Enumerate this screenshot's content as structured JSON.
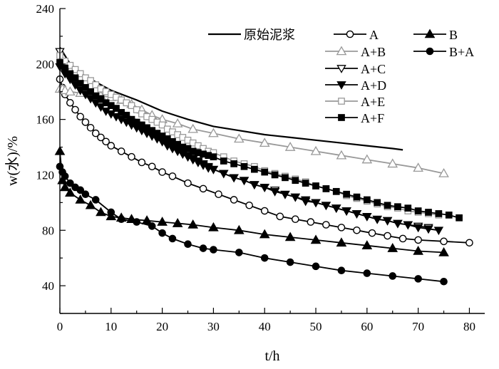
{
  "chart_data": {
    "type": "line",
    "xlabel": "t/h",
    "ylabel": "w(水)/%",
    "xlim": [
      0,
      83
    ],
    "ylim": [
      20,
      240
    ],
    "xticks": [
      0,
      10,
      20,
      30,
      40,
      50,
      60,
      70,
      80
    ],
    "yticks": [
      40,
      80,
      120,
      160,
      200,
      240
    ],
    "legend_position": "top-right",
    "series": [
      {
        "name": "原始泥浆",
        "marker": "none",
        "color": "#000000",
        "x": [
          0,
          2,
          5,
          10,
          15,
          20,
          25,
          30,
          35,
          40,
          45,
          50,
          55,
          60,
          65,
          67
        ],
        "y": [
          212,
          200,
          191,
          181,
          174,
          166,
          160,
          155,
          152,
          149,
          147,
          145,
          143,
          141,
          139,
          138
        ]
      },
      {
        "name": "A",
        "marker": "circle-open",
        "color": "#000000",
        "x": [
          0,
          0.5,
          1,
          2,
          3,
          4,
          5,
          6,
          7,
          8,
          9,
          10,
          12,
          14,
          16,
          18,
          20,
          22,
          25,
          28,
          31,
          34,
          37,
          40,
          43,
          46,
          49,
          52,
          55,
          58,
          61,
          64,
          67,
          70,
          75,
          80
        ],
        "y": [
          189,
          183,
          178,
          172,
          167,
          162,
          158,
          154,
          150,
          147,
          144,
          141,
          137,
          133,
          129,
          126,
          122,
          119,
          114,
          110,
          106,
          102,
          98,
          94,
          90,
          88,
          86,
          84,
          82,
          80,
          78,
          76,
          74,
          73,
          72,
          71
        ]
      },
      {
        "name": "B",
        "marker": "triangle-up-filled",
        "color": "#000000",
        "x": [
          0,
          0.5,
          1,
          2,
          4,
          6,
          8,
          10,
          12,
          14,
          17,
          20,
          23,
          26,
          30,
          35,
          40,
          45,
          50,
          55,
          60,
          65,
          70,
          75
        ],
        "y": [
          137,
          116,
          111,
          107,
          102,
          98,
          93,
          90,
          89,
          88,
          87,
          86,
          85,
          84,
          82,
          80,
          77,
          75,
          73,
          71,
          69,
          67,
          65,
          64
        ]
      },
      {
        "name": "A+B",
        "marker": "triangle-up-open",
        "color": "#999999",
        "x": [
          0,
          0.5,
          1,
          2,
          4,
          6,
          8,
          10,
          12,
          14,
          16,
          18,
          20,
          23,
          26,
          30,
          35,
          40,
          45,
          50,
          55,
          60,
          65,
          70,
          75
        ],
        "y": [
          182,
          182,
          181,
          180,
          179,
          178,
          177,
          176,
          174,
          171,
          167,
          163,
          160,
          157,
          153,
          150,
          146,
          143,
          140,
          137,
          134,
          131,
          128,
          125,
          121
        ]
      },
      {
        "name": "B+A",
        "marker": "circle-filled",
        "color": "#000000",
        "x": [
          0,
          0.5,
          1,
          2,
          3,
          4,
          5,
          7,
          10,
          12,
          15,
          18,
          20,
          22,
          25,
          28,
          30,
          35,
          40,
          45,
          50,
          55,
          60,
          65,
          70,
          75
        ],
        "y": [
          126,
          122,
          119,
          114,
          111,
          109,
          106,
          102,
          93,
          88,
          86,
          83,
          78,
          74,
          70,
          67,
          66,
          64,
          60,
          57,
          54,
          51,
          49,
          47,
          45,
          43
        ]
      },
      {
        "name": "A+C",
        "marker": "triangle-down-open",
        "color": "#000000",
        "x": [
          0,
          1,
          2,
          3,
          4,
          5,
          6,
          7,
          8,
          9,
          10,
          11,
          12,
          13,
          14,
          15,
          16,
          17,
          18,
          19,
          20,
          21,
          22,
          23,
          24,
          25,
          26,
          27,
          28,
          29,
          30,
          32,
          34,
          36,
          38,
          40,
          42,
          44,
          46,
          48,
          50,
          52,
          54,
          56,
          58,
          60,
          62,
          64,
          66,
          68,
          70,
          72
        ],
        "y": [
          209,
          195,
          190,
          185,
          182,
          179,
          176,
          173,
          170,
          168,
          166,
          164,
          162,
          160,
          158,
          156,
          153,
          151,
          149,
          147,
          144,
          141,
          139,
          137,
          135,
          133,
          131,
          129,
          127,
          125,
          124,
          121,
          118,
          116,
          113,
          111,
          109,
          106,
          104,
          101,
          100,
          98,
          96,
          94,
          92,
          90,
          88,
          87,
          85,
          84,
          83,
          82
        ]
      },
      {
        "name": "A+D",
        "marker": "triangle-down-filled",
        "color": "#000000",
        "x": [
          0,
          1,
          2,
          3,
          4,
          5,
          6,
          7,
          8,
          9,
          10,
          11,
          12,
          13,
          14,
          15,
          16,
          17,
          18,
          19,
          20,
          21,
          22,
          23,
          24,
          25,
          26,
          27,
          28,
          29,
          30,
          32,
          34,
          36,
          38,
          40,
          42,
          44,
          46,
          48,
          50,
          52,
          54,
          56,
          58,
          60,
          62,
          64,
          66,
          68,
          70,
          72,
          74
        ],
        "y": [
          198,
          193,
          189,
          185,
          181,
          178,
          175,
          172,
          169,
          166,
          164,
          162,
          160,
          158,
          156,
          154,
          152,
          150,
          148,
          146,
          144,
          142,
          140,
          138,
          136,
          134,
          132,
          130,
          128,
          126,
          124,
          121,
          118,
          116,
          113,
          111,
          108,
          106,
          104,
          102,
          100,
          98,
          96,
          94,
          92,
          90,
          88,
          87,
          85,
          84,
          82,
          81,
          80
        ]
      },
      {
        "name": "A+E",
        "marker": "square-open",
        "color": "#999999",
        "x": [
          0,
          1,
          2,
          3,
          4,
          5,
          6,
          7,
          8,
          9,
          10,
          11,
          12,
          13,
          14,
          15,
          16,
          17,
          18,
          19,
          20,
          21,
          22,
          23,
          24,
          25,
          26,
          27,
          28,
          29,
          30,
          32,
          34,
          36,
          38,
          40,
          42,
          44,
          46,
          48,
          50,
          52,
          54,
          56,
          58,
          60,
          62,
          64,
          66,
          68,
          70,
          72,
          74
        ],
        "y": [
          206,
          202,
          199,
          196,
          193,
          190,
          188,
          185,
          182,
          180,
          178,
          176,
          174,
          172,
          170,
          167,
          164,
          162,
          160,
          158,
          156,
          153,
          151,
          149,
          147,
          145,
          143,
          141,
          139,
          137,
          136,
          133,
          130,
          128,
          126,
          123,
          121,
          119,
          117,
          115,
          112,
          110,
          108,
          105,
          103,
          101,
          99,
          97,
          96,
          94,
          93,
          92,
          91
        ]
      },
      {
        "name": "A+F",
        "marker": "square-filled",
        "color": "#000000",
        "x": [
          0,
          1,
          2,
          3,
          4,
          5,
          6,
          7,
          8,
          9,
          10,
          11,
          12,
          13,
          14,
          15,
          16,
          17,
          18,
          19,
          20,
          21,
          22,
          23,
          24,
          25,
          26,
          27,
          28,
          29,
          30,
          32,
          34,
          36,
          38,
          40,
          42,
          44,
          46,
          48,
          50,
          52,
          54,
          56,
          58,
          60,
          62,
          64,
          66,
          68,
          70,
          72,
          74,
          76,
          78
        ],
        "y": [
          201,
          197,
          193,
          190,
          186,
          183,
          180,
          177,
          175,
          172,
          170,
          168,
          165,
          163,
          160,
          158,
          156,
          154,
          152,
          150,
          148,
          146,
          144,
          142,
          140,
          139,
          137,
          136,
          135,
          134,
          133,
          130,
          128,
          126,
          124,
          122,
          120,
          118,
          116,
          114,
          112,
          110,
          108,
          106,
          104,
          102,
          100,
          98,
          97,
          96,
          94,
          93,
          92,
          91,
          89
        ]
      }
    ]
  }
}
